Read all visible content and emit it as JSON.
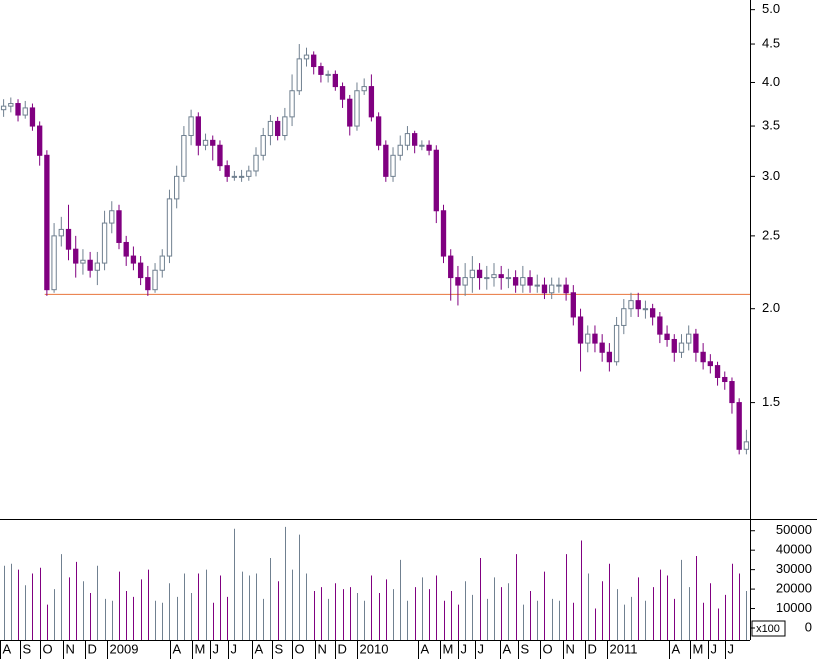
{
  "chart_data": [
    {
      "type": "candlestick",
      "open": [
        3.68,
        3.72,
        3.75,
        3.62,
        3.7,
        3.5,
        3.2,
        2.12,
        2.5,
        2.55,
        2.4,
        2.3,
        2.32,
        2.25,
        2.3,
        2.6,
        2.7,
        2.45,
        2.35,
        2.3,
        2.2,
        2.12,
        2.25,
        2.35,
        2.8,
        3.0,
        3.4,
        3.6,
        3.3,
        3.35,
        3.3,
        3.1,
        3.0,
        3.0,
        3.0,
        3.05,
        3.2,
        3.4,
        3.55,
        3.4,
        3.6,
        3.9,
        4.3,
        4.35,
        4.2,
        4.1,
        4.1,
        3.95,
        3.8,
        3.5,
        3.9,
        3.95,
        3.6,
        3.3,
        3.0,
        3.2,
        3.3,
        3.42,
        3.3,
        3.3,
        3.25,
        2.7,
        2.35,
        2.2,
        2.15,
        2.2,
        2.25,
        2.2,
        2.2,
        2.22,
        2.2,
        2.2,
        2.15,
        2.2,
        2.15,
        2.15,
        2.1,
        2.15,
        2.15,
        2.1,
        1.95,
        1.8,
        1.85,
        1.8,
        1.75,
        1.7,
        1.9,
        2.0,
        2.05,
        2.0,
        2.0,
        1.95,
        1.85,
        1.82,
        1.75,
        1.8,
        1.85,
        1.75,
        1.7,
        1.68,
        1.62,
        1.6,
        1.5,
        1.3
      ],
      "high": [
        3.8,
        3.82,
        3.8,
        3.78,
        3.75,
        3.55,
        3.25,
        2.6,
        2.65,
        2.75,
        2.5,
        2.4,
        2.38,
        2.38,
        2.7,
        2.78,
        2.75,
        2.5,
        2.42,
        2.35,
        2.28,
        2.3,
        2.4,
        2.88,
        3.1,
        3.5,
        3.68,
        3.65,
        3.42,
        3.4,
        3.35,
        3.15,
        3.05,
        3.06,
        3.1,
        3.28,
        3.48,
        3.62,
        3.6,
        3.7,
        4.1,
        4.5,
        4.45,
        4.4,
        4.25,
        4.15,
        4.15,
        4.0,
        3.85,
        4.0,
        4.05,
        4.1,
        3.65,
        3.35,
        3.28,
        3.4,
        3.5,
        3.45,
        3.35,
        3.35,
        3.3,
        2.75,
        2.4,
        2.28,
        2.3,
        2.35,
        2.3,
        2.28,
        2.3,
        2.28,
        2.26,
        2.25,
        2.28,
        2.25,
        2.22,
        2.2,
        2.2,
        2.2,
        2.2,
        2.15,
        2.0,
        1.9,
        1.9,
        1.85,
        1.8,
        1.95,
        2.06,
        2.1,
        2.1,
        2.05,
        2.03,
        1.98,
        1.9,
        1.85,
        1.85,
        1.9,
        1.88,
        1.8,
        1.74,
        1.7,
        1.65,
        1.62,
        1.52,
        1.38
      ],
      "low": [
        3.6,
        3.65,
        3.55,
        3.58,
        3.45,
        3.1,
        2.08,
        2.1,
        2.42,
        2.32,
        2.2,
        2.22,
        2.2,
        2.15,
        2.25,
        2.52,
        2.4,
        2.28,
        2.25,
        2.15,
        2.08,
        2.1,
        2.2,
        2.3,
        2.72,
        2.95,
        3.3,
        3.2,
        3.25,
        3.15,
        3.05,
        2.95,
        2.96,
        2.95,
        2.96,
        3.0,
        3.15,
        3.3,
        3.35,
        3.35,
        3.5,
        3.85,
        4.2,
        4.1,
        4.0,
        4.0,
        3.9,
        3.7,
        3.4,
        3.45,
        3.85,
        3.55,
        3.25,
        2.95,
        2.95,
        3.15,
        3.25,
        3.22,
        3.25,
        3.2,
        2.6,
        2.3,
        2.05,
        2.02,
        2.08,
        2.1,
        2.12,
        2.12,
        2.14,
        2.12,
        2.13,
        2.1,
        2.1,
        2.1,
        2.1,
        2.06,
        2.06,
        2.1,
        2.05,
        1.9,
        1.65,
        1.75,
        1.75,
        1.7,
        1.65,
        1.68,
        1.85,
        1.95,
        1.95,
        1.94,
        1.9,
        1.8,
        1.78,
        1.7,
        1.72,
        1.76,
        1.7,
        1.66,
        1.64,
        1.58,
        1.56,
        1.45,
        1.28,
        1.28
      ],
      "close": [
        3.72,
        3.75,
        3.62,
        3.7,
        3.5,
        3.2,
        2.12,
        2.5,
        2.55,
        2.4,
        2.3,
        2.32,
        2.25,
        2.3,
        2.6,
        2.7,
        2.45,
        2.35,
        2.3,
        2.2,
        2.12,
        2.25,
        2.35,
        2.8,
        3.0,
        3.4,
        3.6,
        3.3,
        3.35,
        3.3,
        3.1,
        3.0,
        3.0,
        3.0,
        3.05,
        3.2,
        3.4,
        3.55,
        3.4,
        3.6,
        3.9,
        4.3,
        4.35,
        4.2,
        4.1,
        4.1,
        3.95,
        3.8,
        3.5,
        3.9,
        3.95,
        3.6,
        3.3,
        3.0,
        3.2,
        3.3,
        3.42,
        3.3,
        3.3,
        3.25,
        2.7,
        2.35,
        2.2,
        2.15,
        2.2,
        2.25,
        2.2,
        2.2,
        2.22,
        2.2,
        2.2,
        2.15,
        2.2,
        2.15,
        2.15,
        2.1,
        2.15,
        2.15,
        2.1,
        1.95,
        1.8,
        1.85,
        1.8,
        1.75,
        1.7,
        1.9,
        2.0,
        2.05,
        2.0,
        2.0,
        1.95,
        1.85,
        1.82,
        1.75,
        1.8,
        1.85,
        1.75,
        1.7,
        1.68,
        1.62,
        1.6,
        1.5,
        1.3,
        1.33
      ],
      "up_color": "#708090",
      "down_color": "#800080",
      "log_scale": true,
      "ylim": [
        1.05,
        5.15
      ],
      "yticks": [
        1.5,
        {
          "value": 2,
          "label": "2.0"
        },
        2.5,
        {
          "value": 3,
          "label": "3.0"
        },
        3.5,
        {
          "value": 4,
          "label": "4.0"
        },
        4.5,
        {
          "value": 5,
          "label": "5.0"
        }
      ],
      "xlim": [
        0,
        104
      ],
      "xticks": [
        {
          "value": 0,
          "label": "A"
        },
        {
          "value": 2.8,
          "label": "S"
        },
        {
          "value": 5.5,
          "label": "O"
        },
        {
          "value": 8.7,
          "label": "N"
        },
        {
          "value": 11.8,
          "label": "D"
        },
        {
          "value": 14.8,
          "label": "2009"
        },
        {
          "value": 23.6,
          "label": "A"
        },
        {
          "value": 26.6,
          "label": "M"
        },
        {
          "value": 29.1,
          "label": "J"
        },
        {
          "value": 31.6,
          "label": "J"
        },
        {
          "value": 35,
          "label": "A"
        },
        {
          "value": 37.7,
          "label": "S"
        },
        {
          "value": 40.5,
          "label": "O"
        },
        {
          "value": 43.7,
          "label": "N"
        },
        {
          "value": 46.5,
          "label": "D"
        },
        {
          "value": 49.5,
          "label": "2010"
        },
        {
          "value": 58,
          "label": "A"
        },
        {
          "value": 61,
          "label": "M"
        },
        {
          "value": 63.5,
          "label": "J"
        },
        {
          "value": 65.9,
          "label": "J"
        },
        {
          "value": 69.3,
          "label": "A"
        },
        {
          "value": 71.8,
          "label": "S"
        },
        {
          "value": 74.9,
          "label": "O"
        },
        {
          "value": 78.1,
          "label": "N"
        },
        {
          "value": 81.1,
          "label": "D"
        },
        {
          "value": 84.2,
          "label": "2011"
        },
        {
          "value": 92.7,
          "label": "A"
        },
        {
          "value": 95.7,
          "label": "M"
        },
        {
          "value": 98.2,
          "label": "J"
        },
        {
          "value": 100.6,
          "label": "J"
        }
      ],
      "hline": {
        "value": 2.09,
        "x_start": 6.2,
        "color": "#e8743b"
      }
    },
    {
      "type": "volume",
      "values": [
        32000,
        33000,
        30000,
        22000,
        28000,
        31000,
        12000,
        20000,
        38000,
        26000,
        34000,
        24000,
        18000,
        32000,
        15000,
        14000,
        29000,
        19000,
        16000,
        25000,
        30000,
        14000,
        13000,
        23000,
        16000,
        28000,
        18000,
        28000,
        30000,
        13000,
        27000,
        16000,
        51000,
        29000,
        27000,
        28000,
        15000,
        36000,
        24000,
        52000,
        30000,
        48000,
        28000,
        19000,
        21000,
        15000,
        23000,
        20000,
        21000,
        18000,
        14000,
        27000,
        18000,
        25000,
        20000,
        35000,
        14000,
        21000,
        26000,
        20000,
        27000,
        14000,
        19000,
        12000,
        24000,
        17000,
        36000,
        15000,
        26000,
        21000,
        23000,
        38000,
        12000,
        19000,
        14000,
        29000,
        15000,
        14000,
        38000,
        13000,
        45000,
        28000,
        10000,
        24000,
        33000,
        20000,
        12000,
        16000,
        26000,
        14000,
        21000,
        30000,
        27000,
        15000,
        35000,
        21000,
        37000,
        13000,
        23000,
        10000,
        17000,
        33000,
        28000,
        19000
      ],
      "up_color": "#708090",
      "down_color": "#800080",
      "ylim": [
        0,
        55000
      ],
      "yticks": [
        0,
        10000,
        20000,
        30000,
        40000,
        50000
      ],
      "unit_label": "x100"
    }
  ]
}
